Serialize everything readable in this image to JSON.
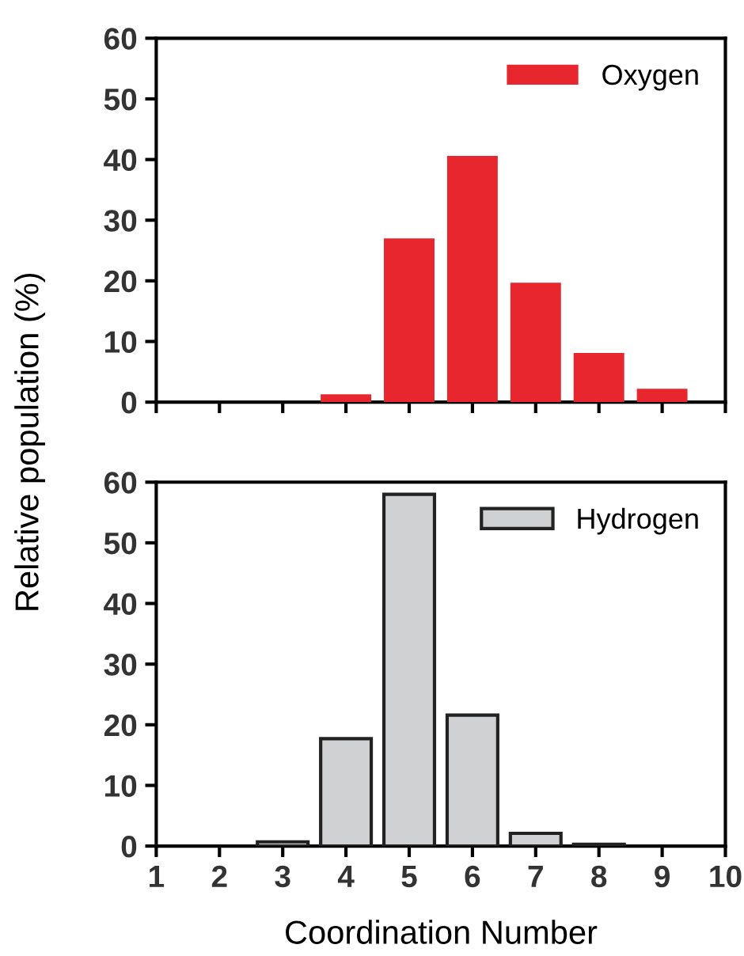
{
  "chart_data": [
    {
      "type": "bar",
      "ylabel": "Relative population (%)",
      "x": [
        4,
        5,
        6,
        7,
        8,
        9
      ],
      "series": [
        {
          "name": "Oxygen",
          "color": "#e8262d",
          "values": [
            1.3,
            27.0,
            40.6,
            19.7,
            8.1,
            2.2
          ]
        }
      ],
      "xlim": [
        1,
        10
      ],
      "xticks": [
        1,
        2,
        3,
        4,
        5,
        6,
        7,
        8,
        9,
        10
      ],
      "ylim": [
        0,
        60
      ],
      "yticks": [
        0,
        10,
        20,
        30,
        40,
        50,
        60
      ],
      "tick_labels": "y",
      "legend": "top right",
      "grid": false
    },
    {
      "type": "bar",
      "xlabel": "Coordination Number",
      "x": [
        3,
        4,
        5,
        6,
        7,
        8
      ],
      "series": [
        {
          "name": "Hydrogen",
          "color": "#d0d1d3",
          "values": [
            0.7,
            17.7,
            58.0,
            21.6,
            2.1,
            0.3
          ]
        }
      ],
      "xlim": [
        1,
        10
      ],
      "xticks": [
        1,
        2,
        3,
        4,
        5,
        6,
        7,
        8,
        9,
        10
      ],
      "ylim": [
        0,
        60
      ],
      "yticks": [
        0,
        10,
        20,
        30,
        40,
        50,
        60
      ],
      "legend": "top right",
      "grid": false
    }
  ]
}
